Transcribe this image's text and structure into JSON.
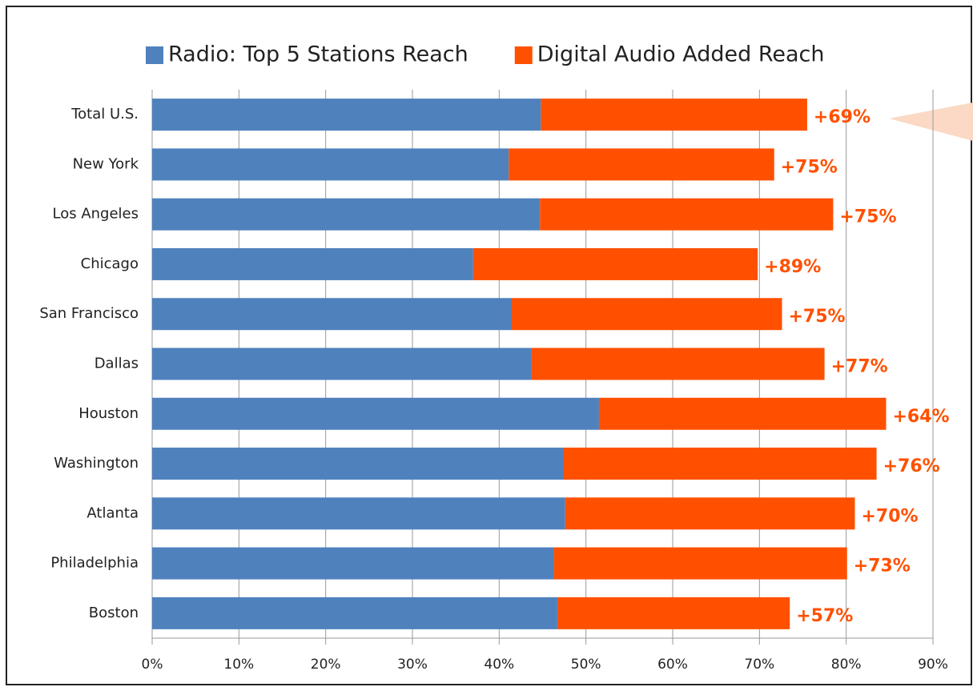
{
  "chart_data": {
    "type": "stacked-bar-horizontal",
    "categories": [
      "Total U.S.",
      "New York",
      "Los Angeles",
      "Chicago",
      "San Francisco",
      "Dallas",
      "Houston",
      "Washington",
      "Atlanta",
      "Philadelphia",
      "Boston"
    ],
    "series": [
      {
        "name": "Radio: Top 5 Stations Reach",
        "color": "#4f81bd",
        "values": [
          44.8,
          41.1,
          44.7,
          37.0,
          41.4,
          43.7,
          51.5,
          47.4,
          47.6,
          46.3,
          46.7
        ]
      },
      {
        "name": "Digital Audio Added Reach",
        "color": "#ff5000",
        "values": [
          30.7,
          30.6,
          33.8,
          32.8,
          31.2,
          33.8,
          33.1,
          36.1,
          33.4,
          33.8,
          26.8
        ]
      }
    ],
    "annotations": [
      "+69%",
      "+75%",
      "+75%",
      "+89%",
      "+75%",
      "+77%",
      "+64%",
      "+76%",
      "+70%",
      "+73%",
      "+57%"
    ],
    "xlim": [
      0,
      90
    ],
    "xticks": [
      {
        "value": 0,
        "label": "0%"
      },
      {
        "value": 10,
        "label": "10%"
      },
      {
        "value": 20,
        "label": "20%"
      },
      {
        "value": 30,
        "label": "30%"
      },
      {
        "value": 40,
        "label": "40%"
      },
      {
        "value": 50,
        "label": "50%"
      },
      {
        "value": 60,
        "label": "60%"
      },
      {
        "value": 70,
        "label": "70%"
      },
      {
        "value": 80,
        "label": "80%"
      },
      {
        "value": 90,
        "label": "90%"
      }
    ],
    "grid": true,
    "legend": "top"
  }
}
